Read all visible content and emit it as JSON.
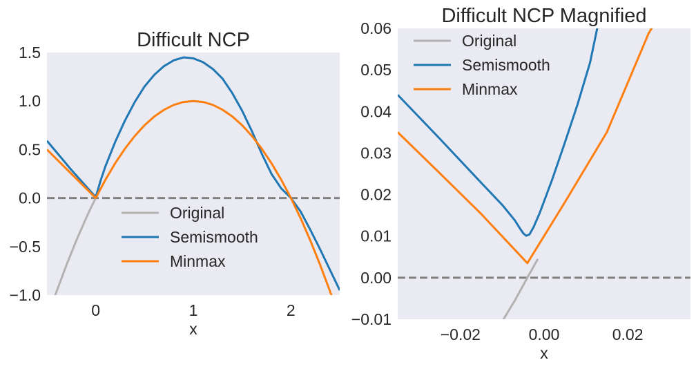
{
  "chart_data": [
    {
      "type": "line",
      "title": "Difficult NCP",
      "xlabel": "x",
      "ylabel": "",
      "xlim": [
        -0.5,
        2.5
      ],
      "ylim": [
        -1.0,
        1.5
      ],
      "xticks": [
        {
          "value": 0,
          "label": "0"
        },
        {
          "value": 1,
          "label": "1"
        },
        {
          "value": 2,
          "label": "2"
        }
      ],
      "yticks": [
        {
          "value": -1.0,
          "label": "−1.0"
        },
        {
          "value": -0.5,
          "label": "−0.5"
        },
        {
          "value": 0.0,
          "label": "0.0"
        },
        {
          "value": 0.5,
          "label": "0.5"
        },
        {
          "value": 1.0,
          "label": "1.0"
        },
        {
          "value": 1.5,
          "label": "1.5"
        }
      ],
      "grid": false,
      "legend_position": "lower-center",
      "reference_line": {
        "y": 0,
        "style": "dashed",
        "color": "#808080"
      },
      "series": [
        {
          "name": "Original",
          "color": "#b2b2b2",
          "x": [
            -0.5,
            -0.4,
            -0.3,
            -0.2,
            -0.1,
            -0.05,
            0.0,
            0.05
          ],
          "y": [
            -1.25,
            -0.96,
            -0.69,
            -0.44,
            -0.21,
            -0.1,
            0.0,
            0.1
          ]
        },
        {
          "name": "Semismooth",
          "color": "#1f77b4",
          "x": [
            -0.5,
            -0.25,
            0.0,
            0.05,
            0.1,
            0.2,
            0.3,
            0.4,
            0.5,
            0.6,
            0.7,
            0.8,
            0.9,
            1.0,
            1.1,
            1.2,
            1.3,
            1.4,
            1.5,
            1.6,
            1.7,
            1.8,
            1.9,
            2.0,
            2.1,
            2.2,
            2.3,
            2.4,
            2.5
          ],
          "y": [
            0.59,
            0.29,
            0.01,
            0.18,
            0.33,
            0.58,
            0.8,
            0.99,
            1.15,
            1.27,
            1.36,
            1.42,
            1.45,
            1.44,
            1.4,
            1.33,
            1.23,
            1.08,
            0.9,
            0.69,
            0.46,
            0.25,
            0.1,
            0.0,
            -0.14,
            -0.33,
            -0.53,
            -0.74,
            -0.95
          ]
        },
        {
          "name": "Minmax",
          "color": "#ff7f0e",
          "x": [
            -0.5,
            -0.25,
            0.0,
            0.1,
            0.2,
            0.3,
            0.4,
            0.5,
            0.6,
            0.7,
            0.8,
            0.9,
            1.0,
            1.1,
            1.2,
            1.3,
            1.4,
            1.5,
            1.6,
            1.7,
            1.8,
            1.9,
            2.0,
            2.1,
            2.2,
            2.3,
            2.4,
            2.45
          ],
          "y": [
            0.5,
            0.25,
            0.0,
            0.19,
            0.36,
            0.51,
            0.64,
            0.75,
            0.84,
            0.91,
            0.96,
            0.99,
            1.0,
            0.99,
            0.96,
            0.91,
            0.84,
            0.75,
            0.64,
            0.51,
            0.36,
            0.19,
            0.0,
            -0.21,
            -0.44,
            -0.69,
            -0.96,
            -1.1
          ]
        }
      ]
    },
    {
      "type": "line",
      "title": "Difficult NCP Magnified",
      "xlabel": "x",
      "ylabel": "",
      "xlim": [
        -0.035,
        0.035
      ],
      "ylim": [
        -0.01,
        0.06
      ],
      "xticks": [
        {
          "value": -0.02,
          "label": "−0.02"
        },
        {
          "value": 0.0,
          "label": "0.00"
        },
        {
          "value": 0.02,
          "label": "0.02"
        }
      ],
      "yticks": [
        {
          "value": -0.01,
          "label": "−0.01"
        },
        {
          "value": 0.0,
          "label": "0.00"
        },
        {
          "value": 0.01,
          "label": "0.01"
        },
        {
          "value": 0.02,
          "label": "0.02"
        },
        {
          "value": 0.03,
          "label": "0.03"
        },
        {
          "value": 0.04,
          "label": "0.04"
        },
        {
          "value": 0.05,
          "label": "0.05"
        },
        {
          "value": 0.06,
          "label": "0.06"
        }
      ],
      "grid": false,
      "legend_position": "upper-left",
      "reference_line": {
        "y": 0,
        "style": "dashed",
        "color": "#808080"
      },
      "series": [
        {
          "name": "Original",
          "color": "#b2b2b2",
          "x": [
            -0.0103,
            -0.007,
            -0.004,
            -0.0015
          ],
          "y": [
            -0.011,
            -0.0055,
            0.0,
            0.0045
          ]
        },
        {
          "name": "Semismooth",
          "color": "#1f77b4",
          "x": [
            -0.035,
            -0.025,
            -0.015,
            -0.01,
            -0.007,
            -0.006,
            -0.005,
            -0.0043,
            -0.0035,
            -0.0025,
            -0.001,
            0.002,
            0.005,
            0.008,
            0.011,
            0.0127
          ],
          "y": [
            0.044,
            0.0335,
            0.0228,
            0.0175,
            0.0138,
            0.0122,
            0.0107,
            0.0101,
            0.0104,
            0.0122,
            0.0157,
            0.0238,
            0.0326,
            0.0417,
            0.0518,
            0.06
          ]
        },
        {
          "name": "Minmax",
          "color": "#ff7f0e",
          "x": [
            -0.035,
            -0.025,
            -0.015,
            -0.004,
            0.005,
            0.015,
            0.025,
            0.026
          ],
          "y": [
            0.035,
            0.0252,
            0.0153,
            0.0035,
            0.0182,
            0.035,
            0.0588,
            0.0605
          ]
        }
      ]
    }
  ]
}
